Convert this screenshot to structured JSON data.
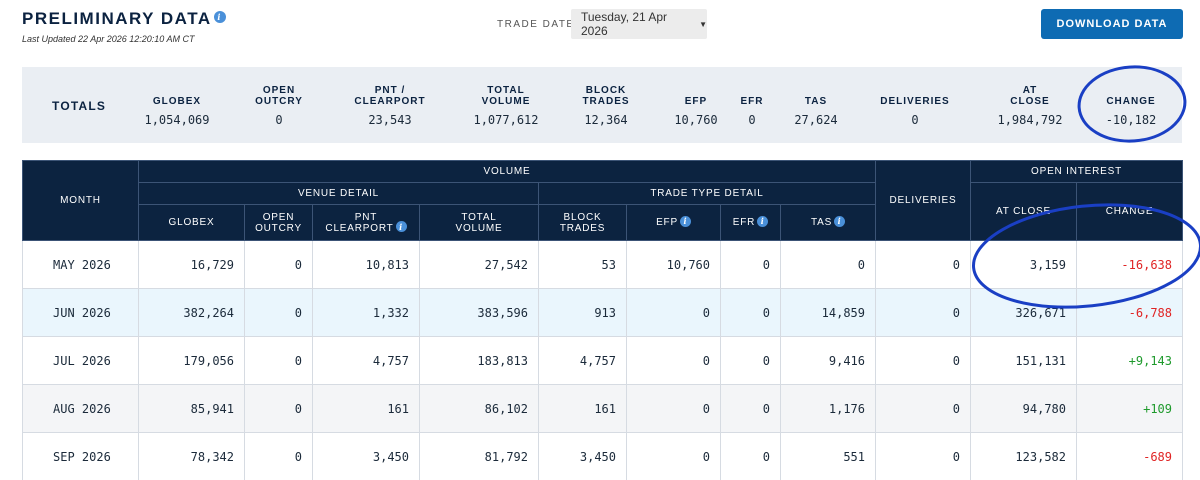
{
  "header": {
    "title": "PRELIMINARY DATA",
    "last_updated": "Last Updated 22 Apr 2026 12:20:10 AM CT",
    "trade_date_label": "TRADE DATE",
    "trade_date_value": "Tuesday, 21 Apr 2026",
    "download_label": "DOWNLOAD DATA"
  },
  "totals": {
    "label": "TOTALS",
    "columns": [
      {
        "header": "GLOBEX",
        "value": "1,054,069"
      },
      {
        "header": "OPEN\nOUTCRY",
        "value": "0"
      },
      {
        "header": "PNT /\nCLEARPORT",
        "value": "23,543"
      },
      {
        "header": "TOTAL\nVOLUME",
        "value": "1,077,612"
      },
      {
        "header": "BLOCK\nTRADES",
        "value": "12,364"
      },
      {
        "header": "EFP",
        "value": "10,760"
      },
      {
        "header": "EFR",
        "value": "0"
      },
      {
        "header": "TAS",
        "value": "27,624"
      },
      {
        "header": "DELIVERIES",
        "value": "0"
      },
      {
        "header": "AT\nCLOSE",
        "value": "1,984,792"
      },
      {
        "header": "CHANGE",
        "value": "-10,182"
      }
    ]
  },
  "table": {
    "group_headers": {
      "month": "MONTH",
      "volume": "VOLUME",
      "deliveries": "DELIVERIES",
      "open_interest": "OPEN INTEREST",
      "venue_detail": "VENUE DETAIL",
      "trade_type_detail": "TRADE TYPE DETAIL"
    },
    "columns": {
      "globex": "GLOBEX",
      "open_outcry_1": "OPEN",
      "open_outcry_2": "OUTCRY",
      "pnt_1": "PNT",
      "pnt_2": "CLEARPORT",
      "total_volume_1": "TOTAL",
      "total_volume_2": "VOLUME",
      "block_trades_1": "BLOCK",
      "block_trades_2": "TRADES",
      "efp": "EFP",
      "efr": "EFR",
      "tas": "TAS",
      "at_close": "AT CLOSE",
      "change": "CHANGE"
    },
    "rows": [
      {
        "month": "MAY 2026",
        "globex": "16,729",
        "open_outcry": "0",
        "pnt_clearport": "10,813",
        "total_volume": "27,542",
        "block_trades": "53",
        "efp": "10,760",
        "efr": "0",
        "tas": "0",
        "deliveries": "0",
        "at_close": "3,159",
        "change": "-16,638",
        "change_sign": "neg"
      },
      {
        "month": "JUN 2026",
        "globex": "382,264",
        "open_outcry": "0",
        "pnt_clearport": "1,332",
        "total_volume": "383,596",
        "block_trades": "913",
        "efp": "0",
        "efr": "0",
        "tas": "14,859",
        "deliveries": "0",
        "at_close": "326,671",
        "change": "-6,788",
        "change_sign": "neg"
      },
      {
        "month": "JUL 2026",
        "globex": "179,056",
        "open_outcry": "0",
        "pnt_clearport": "4,757",
        "total_volume": "183,813",
        "block_trades": "4,757",
        "efp": "0",
        "efr": "0",
        "tas": "9,416",
        "deliveries": "0",
        "at_close": "151,131",
        "change": "+9,143",
        "change_sign": "pos"
      },
      {
        "month": "AUG 2026",
        "globex": "85,941",
        "open_outcry": "0",
        "pnt_clearport": "161",
        "total_volume": "86,102",
        "block_trades": "161",
        "efp": "0",
        "efr": "0",
        "tas": "1,176",
        "deliveries": "0",
        "at_close": "94,780",
        "change": "+109",
        "change_sign": "pos"
      },
      {
        "month": "SEP 2026",
        "globex": "78,342",
        "open_outcry": "0",
        "pnt_clearport": "3,450",
        "total_volume": "81,792",
        "block_trades": "3,450",
        "efp": "0",
        "efr": "0",
        "tas": "551",
        "deliveries": "0",
        "at_close": "123,582",
        "change": "-689",
        "change_sign": "neg"
      }
    ]
  },
  "icons": {
    "info": "info-icon",
    "caret": "caret-down-icon"
  },
  "colors": {
    "header_bg": "#0c2340",
    "accent_button": "#0e6bb3",
    "negative": "#e02424",
    "positive": "#1e9a2c",
    "annotation": "#1a3fc4"
  }
}
